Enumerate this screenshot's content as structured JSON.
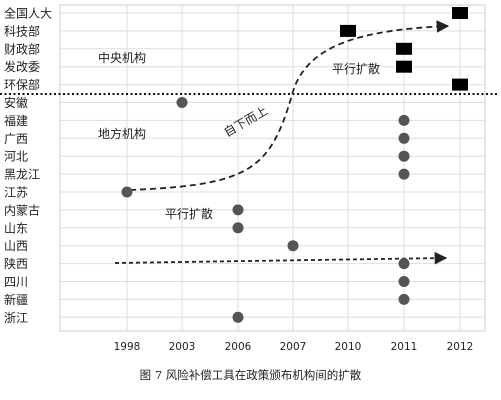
{
  "chart_data": {
    "type": "scatter",
    "title": "",
    "xlabel": "",
    "ylabel": "",
    "categories_x": [
      "1998",
      "2003",
      "2006",
      "2007",
      "2010",
      "2011",
      "2012"
    ],
    "categories_y": [
      "全国人大",
      "科技部",
      "财政部",
      "发改委",
      "环保部",
      "安徽",
      "福建",
      "广西",
      "河北",
      "黑龙江",
      "江苏",
      "内蒙古",
      "山东",
      "山西",
      "陕西",
      "四川",
      "新疆",
      "浙江"
    ],
    "grid": true,
    "series": [
      {
        "name": "中央机构",
        "marker": "square",
        "points": [
          {
            "x": "2012",
            "y": "全国人大"
          },
          {
            "x": "2010",
            "y": "科技部"
          },
          {
            "x": "2011",
            "y": "财政部"
          },
          {
            "x": "2011",
            "y": "发改委"
          },
          {
            "x": "2012",
            "y": "环保部"
          }
        ]
      },
      {
        "name": "地方机构",
        "marker": "circle",
        "points": [
          {
            "x": "2003",
            "y": "安徽"
          },
          {
            "x": "2011",
            "y": "福建"
          },
          {
            "x": "2011",
            "y": "广西"
          },
          {
            "x": "2011",
            "y": "河北"
          },
          {
            "x": "2011",
            "y": "黑龙江"
          },
          {
            "x": "1998",
            "y": "江苏"
          },
          {
            "x": "2006",
            "y": "内蒙古"
          },
          {
            "x": "2006",
            "y": "山东"
          },
          {
            "x": "2007",
            "y": "山西"
          },
          {
            "x": "2011",
            "y": "陕西"
          },
          {
            "x": "2011",
            "y": "四川"
          },
          {
            "x": "2011",
            "y": "新疆"
          },
          {
            "x": "2006",
            "y": "浙江"
          }
        ]
      }
    ],
    "annotations": {
      "central_label": "中央机构",
      "local_label": "地方机构",
      "parallel_top": "平行扩散",
      "top_down": "自下而上",
      "parallel_bottom": "平行扩散"
    }
  },
  "figure": {
    "caption": "图 7    风险补偿工具在政策颁布机构间的扩散"
  },
  "colors": {
    "marker": "#000000",
    "circle": "#555555",
    "grid": "#dddddd",
    "divider": "#111111",
    "text": "#222222"
  }
}
